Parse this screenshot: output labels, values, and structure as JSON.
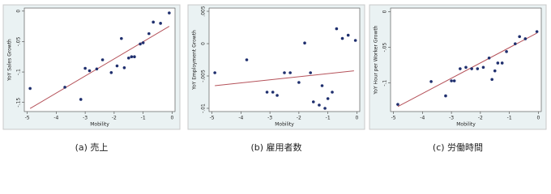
{
  "chart_data": [
    {
      "type": "scatter",
      "caption": "(a) 売上",
      "x_label": "Mobility",
      "y_label": "YoY Sales Growth",
      "point_color": "#1f2f6e",
      "line_color": "#b5525a",
      "x": [
        -4.9,
        -3.7,
        -3.15,
        -3.0,
        -2.85,
        -2.6,
        -2.4,
        -2.1,
        -1.9,
        -1.75,
        -1.65,
        -1.5,
        -1.4,
        -1.3,
        -1.1,
        -1.0,
        -0.8,
        -0.65,
        -0.4,
        -0.1
      ],
      "values": [
        -0.127,
        -0.125,
        -0.145,
        -0.094,
        -0.098,
        -0.095,
        -0.08,
        -0.101,
        -0.09,
        -0.045,
        -0.093,
        -0.077,
        -0.075,
        -0.075,
        -0.054,
        -0.052,
        -0.037,
        -0.018,
        -0.02,
        -0.003
      ],
      "fit_line": {
        "x": [
          -4.9,
          -0.1
        ],
        "y": [
          -0.16,
          -0.025
        ]
      },
      "xlim": [
        -5.1,
        0.1
      ],
      "xticks": [
        -5,
        -4,
        -3,
        -2,
        -1,
        0
      ],
      "ylim": [
        -0.165,
        0.005
      ],
      "yticks": [
        0,
        {
          "value": -0.05,
          "label": "-.05"
        },
        {
          "value": -0.1,
          "label": "-.1"
        },
        {
          "value": -0.15,
          "label": "-.15"
        }
      ]
    },
    {
      "type": "scatter",
      "caption": "(b) 雇用者数",
      "x_label": "Mobility",
      "y_label": "YoY Employment Growth",
      "point_color": "#1f2f6e",
      "line_color": "#b5525a",
      "x": [
        -4.9,
        -3.8,
        -3.1,
        -2.9,
        -2.75,
        -2.5,
        -2.3,
        -2.0,
        -1.8,
        -1.6,
        -1.5,
        -1.3,
        -1.2,
        -1.1,
        -1.0,
        -0.85,
        -0.7,
        -0.5,
        -0.3,
        -0.05
      ],
      "values": [
        -0.0045,
        -0.0025,
        -0.0075,
        -0.0075,
        -0.008,
        -0.0045,
        -0.0045,
        -0.006,
        0.0001,
        -0.0045,
        -0.009,
        -0.0095,
        -0.0065,
        -0.01,
        -0.0085,
        -0.0075,
        0.0023,
        0.0008,
        0.0013,
        0.0005
      ],
      "fit_line": {
        "x": [
          -4.9,
          -0.1
        ],
        "y": [
          -0.0065,
          -0.0042
        ]
      },
      "xlim": [
        -5.1,
        0.1
      ],
      "xticks": [
        -5,
        -4,
        -3,
        -2,
        -1,
        0
      ],
      "ylim": [
        -0.0105,
        0.0055
      ],
      "yticks": [
        {
          "value": 0.005,
          "label": ".005"
        },
        0,
        {
          "value": -0.005,
          "label": "-.005"
        },
        {
          "value": -0.01,
          "label": "-.01"
        }
      ]
    },
    {
      "type": "scatter",
      "caption": "(c) 労働時間",
      "x_label": "Mobility",
      "y_label": "YoY Hour per Worker Growth",
      "point_color": "#1f2f6e",
      "line_color": "#b5525a",
      "x": [
        -4.85,
        -3.7,
        -3.2,
        -3.0,
        -2.9,
        -2.7,
        -2.5,
        -2.3,
        -2.1,
        -1.9,
        -1.7,
        -1.6,
        -1.5,
        -1.4,
        -1.25,
        -1.1,
        -0.8,
        -0.65,
        -0.45,
        -0.05
      ],
      "values": [
        -0.13,
        -0.098,
        -0.118,
        -0.097,
        -0.097,
        -0.08,
        -0.078,
        -0.08,
        -0.08,
        -0.078,
        -0.065,
        -0.095,
        -0.083,
        -0.072,
        -0.072,
        -0.056,
        -0.045,
        -0.035,
        -0.038,
        -0.028
      ],
      "fit_line": {
        "x": [
          -4.85,
          -0.05
        ],
        "y": [
          -0.133,
          -0.03
        ]
      },
      "xlim": [
        -5.1,
        0.1
      ],
      "xticks": [
        -5,
        -4,
        -3,
        -2,
        -1,
        0
      ],
      "ylim": [
        -0.14,
        0.005
      ],
      "yticks": [
        0,
        {
          "value": -0.05,
          "label": "-.05"
        },
        {
          "value": -0.1,
          "label": "-.1"
        }
      ]
    }
  ]
}
